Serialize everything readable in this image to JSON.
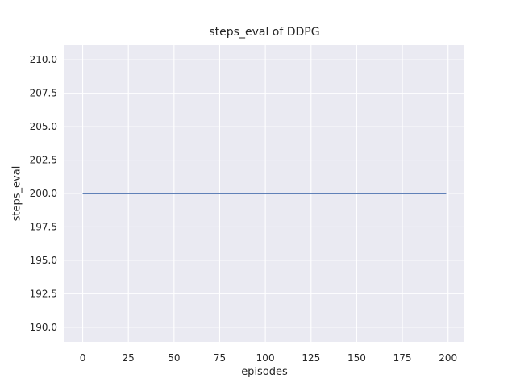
{
  "chart_data": {
    "type": "line",
    "title": "steps_eval of DDPG",
    "xlabel": "episodes",
    "ylabel": "steps_eval",
    "x_tick_labels": [
      "0",
      "25",
      "50",
      "75",
      "100",
      "125",
      "150",
      "175",
      "200"
    ],
    "y_tick_labels": [
      "190.0",
      "192.5",
      "195.0",
      "197.5",
      "200.0",
      "202.5",
      "205.0",
      "207.5",
      "210.0"
    ],
    "xlim": [
      -9.95,
      208.95
    ],
    "ylim": [
      188.9,
      211.1
    ],
    "grid": true,
    "legend": false,
    "series": [
      {
        "name": "steps_eval",
        "color": "#4c72b0",
        "x": [
          0,
          199
        ],
        "y": [
          200,
          200
        ],
        "description": "constant value 200 for every evaluated episode from 0 to 199"
      }
    ],
    "style": {
      "plot_background": "#eaeaf2",
      "grid_color": "#ffffff",
      "text_color": "#262626",
      "figure_background": "#ffffff"
    }
  }
}
